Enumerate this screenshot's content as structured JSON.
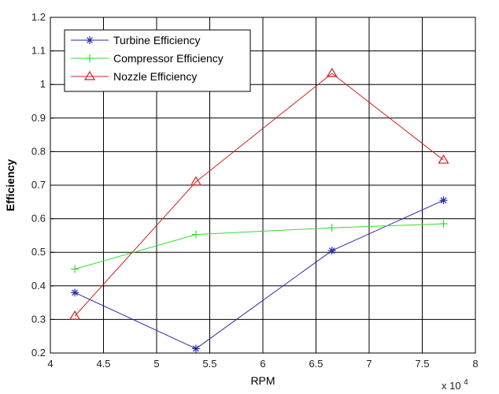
{
  "chart_data": {
    "type": "line",
    "title": "",
    "xlabel": "RPM",
    "ylabel": "Efficiency",
    "x_multiplier_label": "x 10",
    "x_multiplier_exponent": "4",
    "x": [
      4.23,
      5.37,
      6.65,
      7.7
    ],
    "xlim": [
      4,
      8
    ],
    "ylim": [
      0.2,
      1.2
    ],
    "xticks": [
      "4",
      "4.5",
      "5",
      "5.5",
      "6",
      "6.5",
      "7",
      "7.5",
      "8"
    ],
    "yticks": [
      "0.2",
      "0.3",
      "0.4",
      "0.5",
      "0.6",
      "0.7",
      "0.8",
      "0.9",
      "1",
      "1.1",
      "1.2"
    ],
    "grid": true,
    "legend_position": "top-left",
    "series": [
      {
        "name": "Turbine Efficiency",
        "color": "#2a2aa8",
        "marker": "asterisk",
        "values": [
          0.38,
          0.213,
          0.505,
          0.655
        ]
      },
      {
        "name": "Compressor Efficiency",
        "color": "#33dd33",
        "marker": "plus",
        "values": [
          0.45,
          0.553,
          0.573,
          0.585
        ]
      },
      {
        "name": "Nozzle Efficiency",
        "color": "#cc2222",
        "marker": "triangle",
        "values": [
          0.31,
          0.71,
          1.033,
          0.775
        ]
      }
    ]
  }
}
